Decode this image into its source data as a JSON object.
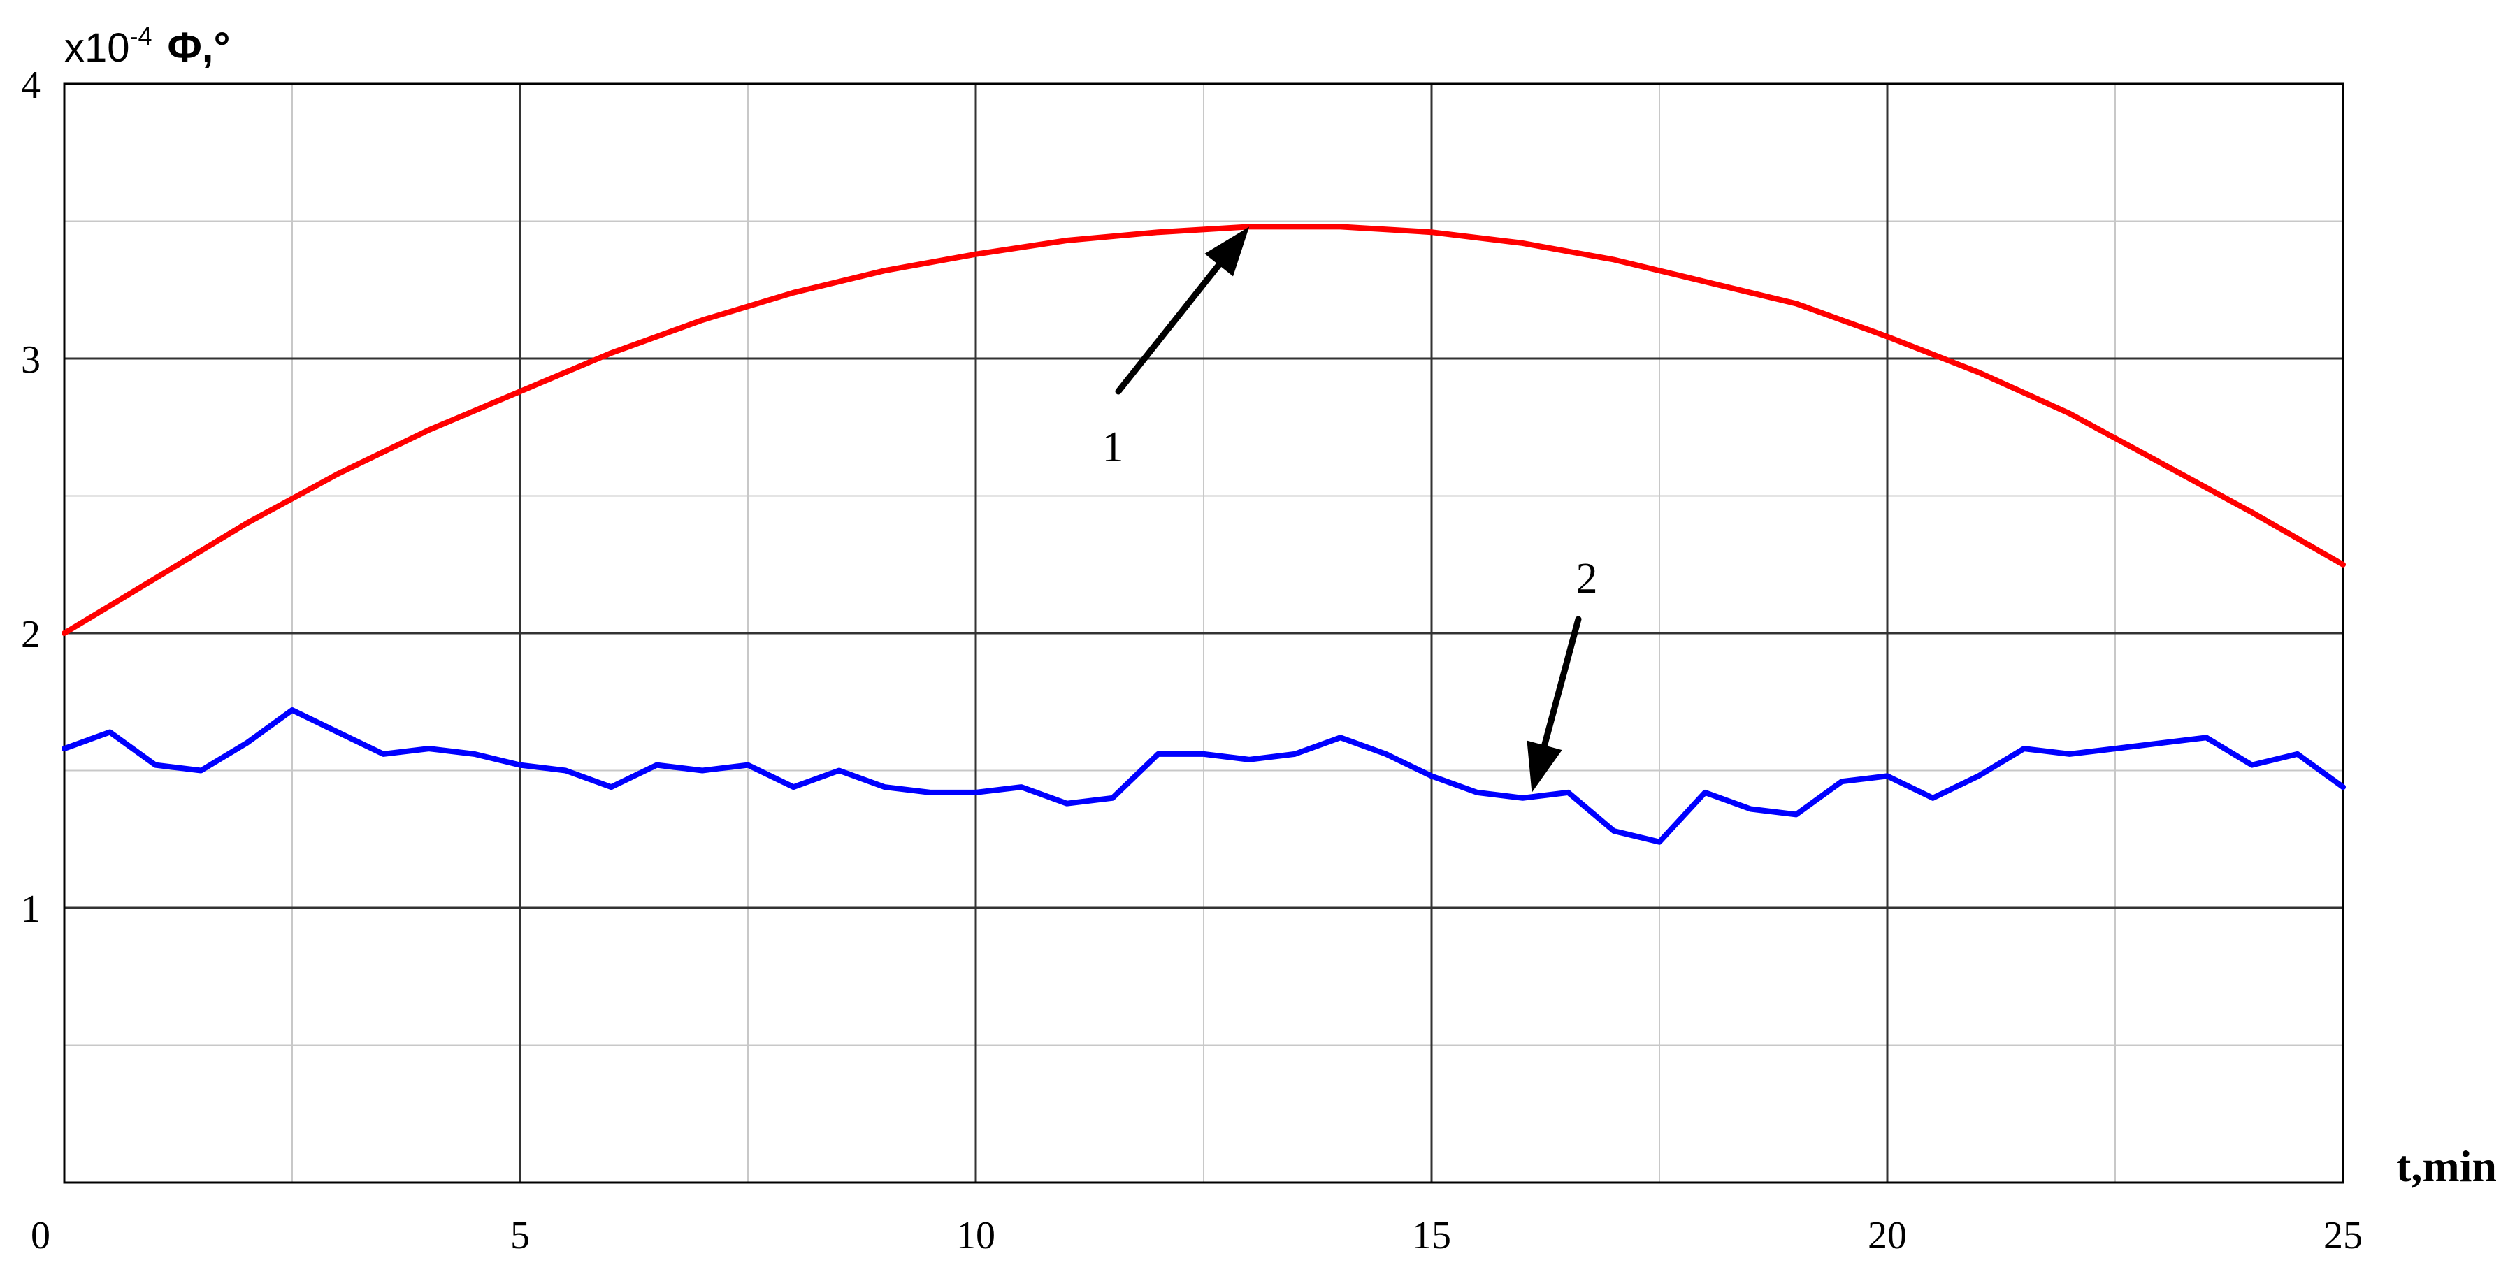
{
  "chart_data": {
    "type": "line",
    "title": "",
    "ylabel_prefix": "x10",
    "ylabel_exponent": "-4",
    "ylabel": "Φ,°",
    "xlabel": "t,min",
    "xlim": [
      0,
      25
    ],
    "ylim": [
      0,
      4
    ],
    "x_ticks": [
      "0",
      "5",
      "10",
      "15",
      "20",
      "25"
    ],
    "x_tick_values": [
      0,
      5,
      10,
      15,
      20,
      25
    ],
    "y_ticks": [
      "1",
      "2",
      "3",
      "4"
    ],
    "y_tick_values": [
      1,
      2,
      3,
      4
    ],
    "grid": true,
    "minor_grid_x": [
      2.5,
      7.5,
      12.5,
      17.5,
      22.5
    ],
    "minor_grid_y": [
      0.5,
      1.5,
      2.5,
      3.5
    ],
    "series": [
      {
        "color": "#ff0000",
        "x": [
          0,
          1,
          2,
          3,
          4,
          5,
          6,
          7,
          8,
          9,
          10,
          11,
          12,
          13,
          13.5,
          14,
          15,
          16,
          17,
          18,
          19,
          20,
          21,
          22,
          23,
          24,
          25
        ],
        "values": [
          2.0,
          2.2,
          2.4,
          2.58,
          2.74,
          2.88,
          3.02,
          3.14,
          3.24,
          3.32,
          3.38,
          3.43,
          3.46,
          3.48,
          3.48,
          3.48,
          3.46,
          3.42,
          3.36,
          3.28,
          3.2,
          3.08,
          2.95,
          2.8,
          2.62,
          2.44,
          2.25
        ]
      },
      {
        "color": "#0000ff",
        "x": [
          0,
          0.5,
          1,
          1.5,
          2,
          2.5,
          3,
          3.5,
          4,
          4.5,
          5,
          5.5,
          6,
          6.5,
          7,
          7.5,
          8,
          8.5,
          9,
          9.5,
          10,
          10.5,
          11,
          11.5,
          12,
          12.5,
          13,
          13.5,
          14,
          14.5,
          15,
          15.5,
          16,
          16.5,
          17,
          17.5,
          18,
          18.5,
          19,
          19.5,
          20,
          20.5,
          21,
          21.5,
          22,
          22.5,
          23,
          23.5,
          24,
          24.5,
          25
        ],
        "values": [
          1.58,
          1.64,
          1.52,
          1.5,
          1.6,
          1.72,
          1.64,
          1.56,
          1.58,
          1.56,
          1.52,
          1.5,
          1.44,
          1.52,
          1.5,
          1.52,
          1.44,
          1.5,
          1.44,
          1.42,
          1.42,
          1.44,
          1.38,
          1.4,
          1.56,
          1.56,
          1.54,
          1.56,
          1.62,
          1.56,
          1.48,
          1.42,
          1.4,
          1.42,
          1.28,
          1.24,
          1.42,
          1.36,
          1.34,
          1.46,
          1.48,
          1.4,
          1.48,
          1.58,
          1.56,
          1.58,
          1.6,
          1.62,
          1.52,
          1.56,
          1.44
        ]
      }
    ],
    "annotations": [
      {
        "text": "1",
        "target": [
          13,
          3.48
        ]
      },
      {
        "text": "2",
        "target": [
          16.1,
          1.42
        ]
      }
    ]
  }
}
